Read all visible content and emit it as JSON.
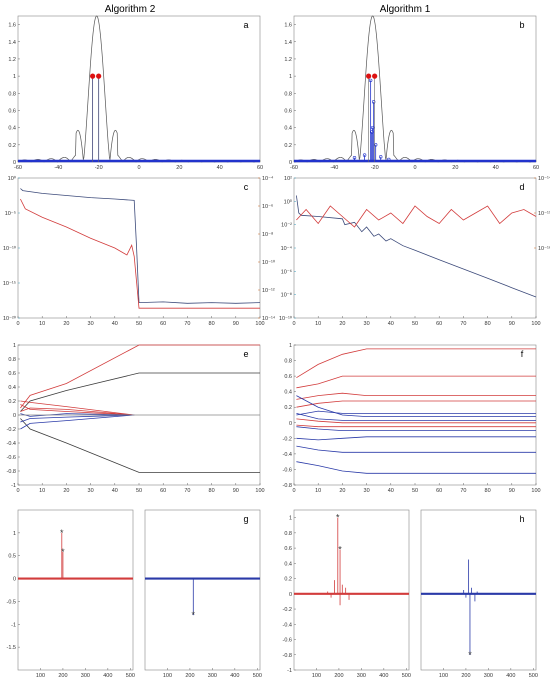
{
  "header": {
    "col_left": "Algorithm 2",
    "col_right": "Algorithm 1"
  },
  "chart_data": [
    {
      "id": "a",
      "type": "line",
      "panel_label": "a",
      "xlim": [
        -60,
        60
      ],
      "ylim": [
        0,
        1.7
      ],
      "xticks": [
        "-60",
        "-40",
        "-20",
        "0",
        "20",
        "40",
        "60"
      ],
      "yticks": [
        "0",
        "0.2",
        "0.4",
        "0.6",
        "0.8",
        "1",
        "1.2",
        "1.4",
        "1.6"
      ],
      "envelope": {
        "peak_x": -21,
        "peak_y": 1.7,
        "sidelobe_period": 6.5
      },
      "true_spikes": [
        {
          "x": -23,
          "y": 1.0
        },
        {
          "x": -20,
          "y": 1.0
        }
      ],
      "estimates": [
        {
          "x": -23,
          "y": 1.0
        },
        {
          "x": -20,
          "y": 1.0
        }
      ],
      "baseline_y": 0.0,
      "grid": false
    },
    {
      "id": "b",
      "type": "line",
      "panel_label": "b",
      "xlim": [
        -60,
        60
      ],
      "ylim": [
        0,
        1.7
      ],
      "xticks": [
        "-60",
        "-40",
        "-20",
        "0",
        "20",
        "40",
        "60"
      ],
      "yticks": [
        "0",
        "0.2",
        "0.4",
        "0.6",
        "0.8",
        "1",
        "1.2",
        "1.4",
        "1.6"
      ],
      "envelope": {
        "peak_x": -21,
        "peak_y": 1.7,
        "sidelobe_period": 6.5
      },
      "true_spikes": [
        {
          "x": -23,
          "y": 1.0
        },
        {
          "x": -20,
          "y": 1.0
        }
      ],
      "estimates": [
        {
          "x": -22,
          "y": 0.95
        },
        {
          "x": -21,
          "y": 0.4
        },
        {
          "x": -20.5,
          "y": 0.7
        },
        {
          "x": -21.5,
          "y": 0.35
        },
        {
          "x": -19.5,
          "y": 0.2
        },
        {
          "x": -30,
          "y": 0.05
        },
        {
          "x": -13,
          "y": 0.03
        },
        {
          "x": -25,
          "y": 0.08
        },
        {
          "x": -17,
          "y": 0.06
        }
      ],
      "baseline_y": 0.0,
      "grid": false
    },
    {
      "id": "c",
      "type": "line",
      "panel_label": "c",
      "xlim": [
        0,
        100
      ],
      "xticks": [
        "0",
        "10",
        "20",
        "30",
        "40",
        "50",
        "60",
        "70",
        "80",
        "90",
        "100"
      ],
      "left_axis": {
        "scale": "log",
        "ylim_exp": [
          -20,
          0
        ],
        "color": "#3a9bb8",
        "ticks": [
          {
            "exp": 0,
            "label": "10⁰"
          },
          {
            "exp": -5,
            "label": "10⁻⁵"
          },
          {
            "exp": -10,
            "label": "10⁻¹⁰"
          },
          {
            "exp": -15,
            "label": "10⁻¹⁵"
          },
          {
            "exp": -20,
            "label": "10⁻²⁰"
          }
        ]
      },
      "right_axis": {
        "scale": "log",
        "ylim_exp": [
          -14,
          -4
        ],
        "color": "#c8641e",
        "ticks": [
          {
            "exp": -4,
            "label": "10⁻⁴"
          },
          {
            "exp": -6,
            "label": "10⁻⁶"
          },
          {
            "exp": -8,
            "label": "10⁻⁸"
          },
          {
            "exp": -10,
            "label": "10⁻¹⁰"
          },
          {
            "exp": -12,
            "label": "10⁻¹²"
          },
          {
            "exp": -14,
            "label": "10⁻¹⁴"
          }
        ]
      },
      "series": [
        {
          "axis": "left",
          "color": "#3c4a7a",
          "x": [
            1,
            2,
            10,
            20,
            30,
            40,
            48,
            49,
            50,
            60,
            70,
            80,
            90,
            100
          ],
          "y_exp": [
            -1.5,
            -1.8,
            -2.2,
            -2.5,
            -2.8,
            -3.0,
            -3.2,
            -10,
            -17.8,
            -17.7,
            -17.9,
            -17.8,
            -17.9,
            -17.8
          ]
        },
        {
          "axis": "right",
          "color": "#d23c3c",
          "x": [
            1,
            3,
            10,
            20,
            30,
            40,
            45,
            47,
            48,
            50,
            60,
            70,
            80,
            90,
            100
          ],
          "y_exp": [
            -5.5,
            -6.2,
            -6.8,
            -7.5,
            -8.3,
            -9.0,
            -9.5,
            -8.8,
            -9.6,
            -13.3,
            -13.3,
            -13.3,
            -13.3,
            -13.3,
            -13.3
          ]
        }
      ]
    },
    {
      "id": "d",
      "type": "line",
      "panel_label": "d",
      "xlim": [
        0,
        100
      ],
      "xticks": [
        "0",
        "10",
        "20",
        "30",
        "40",
        "50",
        "60",
        "70",
        "80",
        "90",
        "100"
      ],
      "left_axis": {
        "scale": "log",
        "ylim_exp": [
          -10,
          2
        ],
        "color": "#3a9bb8",
        "ticks": [
          {
            "exp": 2,
            "label": "10²"
          },
          {
            "exp": 0,
            "label": "10⁰"
          },
          {
            "exp": -2,
            "label": "10⁻²"
          },
          {
            "exp": -4,
            "label": "10⁻⁴"
          },
          {
            "exp": -6,
            "label": "10⁻⁶"
          },
          {
            "exp": -8,
            "label": "10⁻⁸"
          },
          {
            "exp": -10,
            "label": "10⁻¹⁰"
          }
        ]
      },
      "right_axis": {
        "scale": "log",
        "ylim_exp": [
          -18,
          -14
        ],
        "color": "#c8641e",
        "ticks": [
          {
            "exp": -14,
            "label": "10⁻¹⁴"
          },
          {
            "exp": -15,
            "label": "10⁻¹⁵"
          },
          {
            "exp": -16,
            "label": "10⁻¹⁶"
          }
        ]
      },
      "series": [
        {
          "axis": "left",
          "color": "#3c4a7a",
          "x": [
            1,
            2,
            3,
            10,
            20,
            21,
            25,
            28,
            30,
            33,
            35,
            38,
            40,
            45,
            50,
            60,
            70,
            80,
            90,
            100
          ],
          "y_exp": [
            0.5,
            -1.0,
            -1.2,
            -1.3,
            -1.5,
            -2.0,
            -1.8,
            -2.6,
            -2.2,
            -3.0,
            -2.8,
            -3.4,
            -3.2,
            -3.8,
            -4.2,
            -5.0,
            -5.8,
            -6.6,
            -7.4,
            -8.2
          ]
        },
        {
          "axis": "right",
          "color": "#d23c3c",
          "x": [
            1,
            5,
            10,
            15,
            20,
            25,
            30,
            35,
            40,
            45,
            50,
            55,
            60,
            65,
            70,
            75,
            80,
            85,
            90,
            95,
            100
          ],
          "y_exp": [
            -15.2,
            -14.9,
            -15.3,
            -14.8,
            -15.1,
            -15.4,
            -14.9,
            -15.2,
            -15.0,
            -15.3,
            -14.8,
            -15.1,
            -15.3,
            -14.9,
            -15.2,
            -15.0,
            -14.8,
            -15.3,
            -15.0,
            -14.9,
            -15.1
          ]
        }
      ]
    },
    {
      "id": "e",
      "type": "line",
      "panel_label": "e",
      "xlim": [
        0,
        100
      ],
      "ylim": [
        -1,
        1
      ],
      "xticks": [
        "0",
        "10",
        "20",
        "30",
        "40",
        "50",
        "60",
        "70",
        "80",
        "90",
        "100"
      ],
      "yticks": [
        "-1",
        "-0.8",
        "-0.6",
        "-0.4",
        "-0.2",
        "0",
        "0.2",
        "0.4",
        "0.6",
        "0.8",
        "1"
      ],
      "series": [
        {
          "color": "#d23c3c",
          "x": [
            1,
            5,
            20,
            50,
            100
          ],
          "y": [
            0.1,
            0.28,
            0.45,
            1.0,
            1.0
          ]
        },
        {
          "color": "#3c3c3c",
          "x": [
            1,
            5,
            20,
            50,
            100
          ],
          "y": [
            0.05,
            0.2,
            0.35,
            0.6,
            0.6
          ]
        },
        {
          "color": "#3c3c3c",
          "x": [
            1,
            5,
            20,
            50,
            100
          ],
          "y": [
            -0.05,
            -0.2,
            -0.4,
            -0.82,
            -0.82
          ]
        },
        {
          "color": "#d23c3c",
          "x": [
            1,
            5,
            20,
            48
          ],
          "y": [
            0.2,
            0.18,
            0.12,
            0.0
          ]
        },
        {
          "color": "#d23c3c",
          "x": [
            1,
            5,
            20,
            48
          ],
          "y": [
            0.15,
            0.08,
            0.05,
            0.0
          ]
        },
        {
          "color": "#2a3aa8",
          "x": [
            1,
            5,
            20,
            48
          ],
          "y": [
            -0.1,
            -0.05,
            -0.03,
            0.0
          ]
        },
        {
          "color": "#2a3aa8",
          "x": [
            1,
            5,
            20,
            48
          ],
          "y": [
            -0.2,
            -0.12,
            -0.08,
            0.0
          ]
        },
        {
          "color": "#d23c3c",
          "x": [
            1,
            5,
            20,
            48
          ],
          "y": [
            0.05,
            0.1,
            0.08,
            0.0
          ]
        },
        {
          "color": "#2a3aa8",
          "x": [
            1,
            5,
            20,
            48
          ],
          "y": [
            0.02,
            -0.02,
            0.02,
            0.0
          ]
        },
        {
          "color": "#888888",
          "x": [
            0,
            100
          ],
          "y": [
            0.0,
            0.0
          ]
        }
      ]
    },
    {
      "id": "f",
      "type": "line",
      "panel_label": "f",
      "xlim": [
        0,
        100
      ],
      "ylim": [
        -0.8,
        1
      ],
      "xticks": [
        "0",
        "10",
        "20",
        "30",
        "40",
        "50",
        "60",
        "70",
        "80",
        "90",
        "100"
      ],
      "yticks": [
        "-0.8",
        "-0.6",
        "-0.4",
        "-0.2",
        "0",
        "0.2",
        "0.4",
        "0.6",
        "0.8",
        "1"
      ],
      "series": [
        {
          "color": "#d23c3c",
          "x": [
            1,
            10,
            20,
            30,
            100
          ],
          "y": [
            0.58,
            0.75,
            0.88,
            0.95,
            0.95
          ]
        },
        {
          "color": "#d23c3c",
          "x": [
            1,
            10,
            20,
            30,
            100
          ],
          "y": [
            0.45,
            0.5,
            0.6,
            0.6,
            0.6
          ]
        },
        {
          "color": "#d23c3c",
          "x": [
            1,
            10,
            20,
            30,
            100
          ],
          "y": [
            0.3,
            0.35,
            0.38,
            0.35,
            0.35
          ]
        },
        {
          "color": "#d23c3c",
          "x": [
            1,
            10,
            20,
            30,
            100
          ],
          "y": [
            0.2,
            0.25,
            0.28,
            0.28,
            0.28
          ]
        },
        {
          "color": "#2a3aa8",
          "x": [
            1,
            10,
            20,
            30,
            100
          ],
          "y": [
            0.1,
            0.15,
            0.12,
            0.12,
            0.12
          ]
        },
        {
          "color": "#2a3aa8",
          "x": [
            1,
            10,
            20,
            30,
            100
          ],
          "y": [
            0.35,
            0.2,
            0.1,
            0.08,
            0.08
          ]
        },
        {
          "color": "#d23c3c",
          "x": [
            1,
            10,
            20,
            30,
            100
          ],
          "y": [
            0.05,
            0.02,
            0.0,
            0.0,
            0.0
          ]
        },
        {
          "color": "#d23c3c",
          "x": [
            1,
            10,
            20,
            30,
            100
          ],
          "y": [
            -0.03,
            -0.05,
            -0.05,
            -0.05,
            -0.05
          ]
        },
        {
          "color": "#2a3aa8",
          "x": [
            1,
            10,
            20,
            30,
            100
          ],
          "y": [
            -0.05,
            -0.08,
            -0.1,
            -0.1,
            -0.1
          ]
        },
        {
          "color": "#2a3aa8",
          "x": [
            1,
            10,
            20,
            30,
            100
          ],
          "y": [
            0.12,
            0.05,
            0.03,
            0.03,
            0.03
          ]
        },
        {
          "color": "#2a3aa8",
          "x": [
            1,
            10,
            20,
            30,
            100
          ],
          "y": [
            -0.2,
            -0.22,
            -0.2,
            -0.18,
            -0.18
          ]
        },
        {
          "color": "#2a3aa8",
          "x": [
            1,
            10,
            20,
            30,
            100
          ],
          "y": [
            -0.3,
            -0.35,
            -0.38,
            -0.38,
            -0.38
          ]
        },
        {
          "color": "#2a3aa8",
          "x": [
            1,
            10,
            20,
            30,
            100
          ],
          "y": [
            -0.5,
            -0.55,
            -0.62,
            -0.65,
            -0.65
          ]
        }
      ]
    },
    {
      "id": "g",
      "type": "scatter",
      "panel_label": "g",
      "ylim": [
        -2,
        1.5
      ],
      "yticks": [
        "-1.5",
        "-1",
        "-0.5",
        "0",
        "0.5",
        "1"
      ],
      "subplots": [
        {
          "color": "#d23c3c",
          "xlim": [
            0,
            512
          ],
          "xticks": [
            "100",
            "200",
            "300",
            "400",
            "500"
          ],
          "stems": [
            {
              "x": 195,
              "y": 1.0,
              "marker": "*"
            },
            {
              "x": 200,
              "y": 0.58,
              "marker": "*"
            }
          ]
        },
        {
          "color": "#2a3aa8",
          "xlim": [
            0,
            512
          ],
          "xticks": [
            "100",
            "200",
            "300",
            "400",
            "500"
          ],
          "stems": [
            {
              "x": 215,
              "y": -0.8,
              "marker": "*"
            },
            {
              "x": 210,
              "y": 0.02,
              "marker": ""
            }
          ]
        }
      ]
    },
    {
      "id": "h",
      "type": "scatter",
      "panel_label": "h",
      "ylim": [
        -1,
        1.1
      ],
      "yticks": [
        "-1",
        "-0.8",
        "-0.6",
        "-0.4",
        "-0.2",
        "0",
        "0.2",
        "0.4",
        "0.6",
        "0.8",
        "1"
      ],
      "subplots": [
        {
          "color": "#d23c3c",
          "xlim": [
            0,
            512
          ],
          "xticks": [
            "100",
            "200",
            "300",
            "400",
            "500"
          ],
          "stems": [
            {
              "x": 195,
              "y": 1.0,
              "marker": "*"
            },
            {
              "x": 205,
              "y": 0.58,
              "marker": "*"
            },
            {
              "x": 180,
              "y": 0.18,
              "marker": ""
            },
            {
              "x": 215,
              "y": 0.12,
              "marker": ""
            },
            {
              "x": 230,
              "y": 0.08,
              "marker": ""
            },
            {
              "x": 165,
              "y": -0.05,
              "marker": ""
            },
            {
              "x": 205,
              "y": -0.15,
              "marker": ""
            },
            {
              "x": 245,
              "y": -0.08,
              "marker": ""
            },
            {
              "x": 150,
              "y": 0.03,
              "marker": ""
            }
          ]
        },
        {
          "color": "#2a3aa8",
          "xlim": [
            0,
            512
          ],
          "xticks": [
            "100",
            "200",
            "300",
            "400",
            "500"
          ],
          "stems": [
            {
              "x": 212,
              "y": 0.45,
              "marker": ""
            },
            {
              "x": 218,
              "y": -0.8,
              "marker": "*"
            },
            {
              "x": 225,
              "y": 0.08,
              "marker": ""
            },
            {
              "x": 240,
              "y": -0.1,
              "marker": ""
            },
            {
              "x": 200,
              "y": -0.05,
              "marker": ""
            },
            {
              "x": 250,
              "y": 0.03,
              "marker": ""
            },
            {
              "x": 190,
              "y": 0.05,
              "marker": ""
            }
          ]
        }
      ]
    }
  ]
}
